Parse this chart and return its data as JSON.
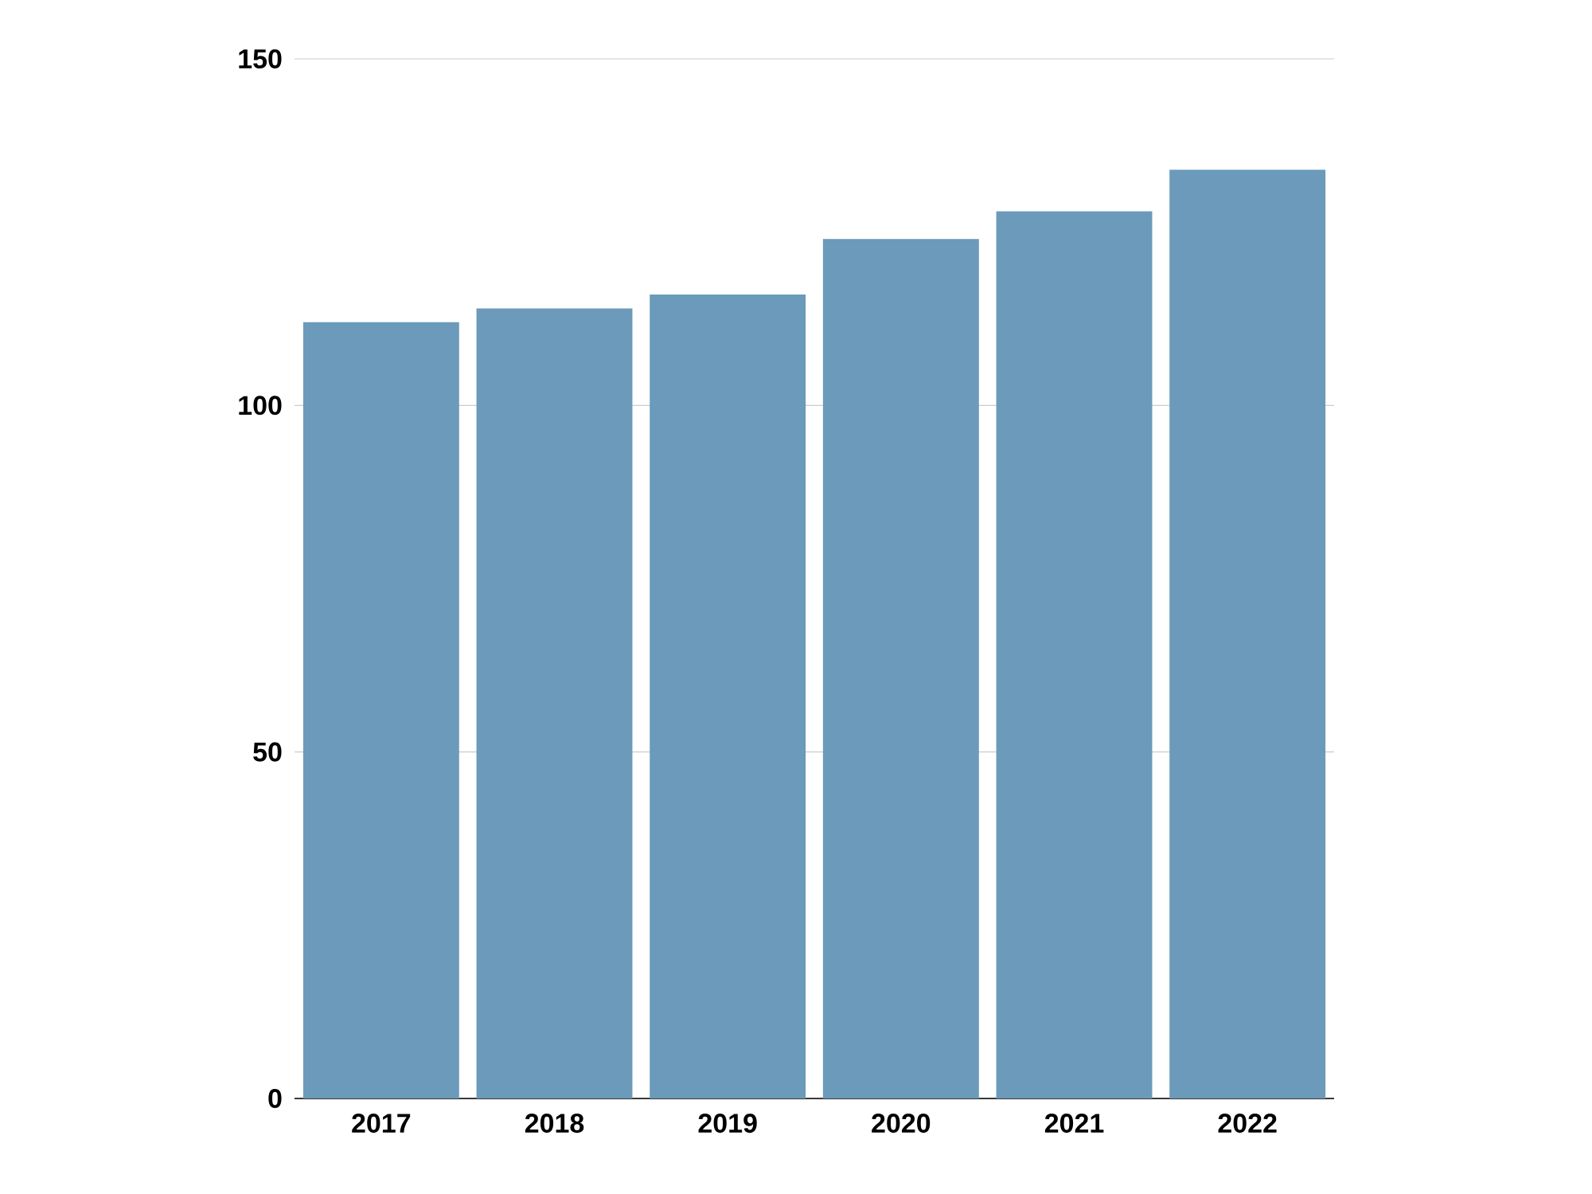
{
  "chart_data": {
    "type": "bar",
    "categories": [
      "2017",
      "2018",
      "2019",
      "2020",
      "2021",
      "2022"
    ],
    "values": [
      112,
      114,
      116,
      124,
      128,
      134
    ],
    "color": "#6b9aba",
    "ylim": [
      0,
      150
    ],
    "yticks": [
      0,
      50,
      100,
      150
    ],
    "grid": "y"
  }
}
